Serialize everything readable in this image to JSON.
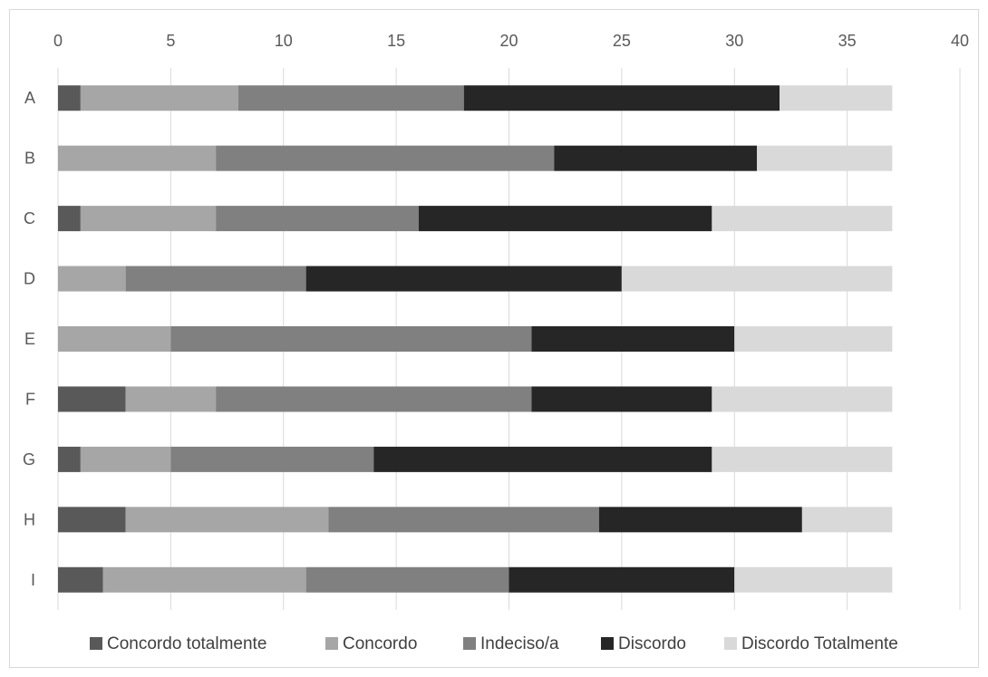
{
  "chart_data": {
    "type": "bar",
    "orientation": "horizontal",
    "stacked": true,
    "categories": [
      "A",
      "B",
      "C",
      "D",
      "E",
      "F",
      "G",
      "H",
      "I"
    ],
    "xlim": [
      0,
      40
    ],
    "x_ticks": [
      0,
      5,
      10,
      15,
      20,
      25,
      30,
      35,
      40
    ],
    "x_tick_labels": [
      "0",
      "5",
      "10",
      "15",
      "20",
      "25",
      "30",
      "35",
      "40"
    ],
    "x_axis_position": "top",
    "grid": true,
    "legend_position": "bottom",
    "series": [
      {
        "name": "Concordo totalmente",
        "color": "#595959",
        "values": [
          1,
          0,
          1,
          0,
          0,
          3,
          1,
          3,
          2
        ]
      },
      {
        "name": "Concordo",
        "color": "#a6a6a6",
        "values": [
          7,
          7,
          6,
          3,
          5,
          4,
          4,
          9,
          9
        ]
      },
      {
        "name": "Indeciso/a",
        "color": "#808080",
        "values": [
          10,
          15,
          9,
          8,
          16,
          14,
          9,
          12,
          9
        ]
      },
      {
        "name": "Discordo",
        "color": "#262626",
        "values": [
          14,
          9,
          13,
          14,
          9,
          8,
          15,
          9,
          10
        ]
      },
      {
        "name": "Discordo Totalmente",
        "color": "#d9d9d9",
        "values": [
          5,
          6,
          8,
          12,
          7,
          8,
          8,
          4,
          7
        ]
      }
    ]
  }
}
